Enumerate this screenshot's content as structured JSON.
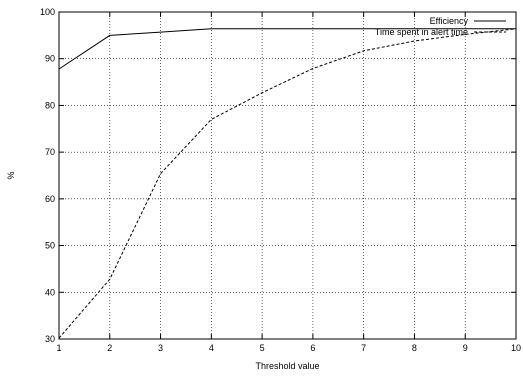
{
  "chart_data": {
    "type": "line",
    "xlabel": "Threshold value",
    "ylabel": "%",
    "xlim": [
      1,
      10
    ],
    "ylim": [
      30,
      100
    ],
    "x_ticks": [
      "1",
      "2",
      "3",
      "4",
      "5",
      "6",
      "7",
      "8",
      "9",
      "10"
    ],
    "y_ticks": [
      "30",
      "40",
      "50",
      "60",
      "70",
      "80",
      "90",
      "100"
    ],
    "grid": true,
    "legend_position": "top-right",
    "x": [
      1,
      2,
      3,
      4,
      5,
      6,
      7,
      8,
      9,
      10
    ],
    "series": [
      {
        "name": "Efficiency",
        "style": "solid",
        "values": [
          87.8,
          95.0,
          95.7,
          96.4,
          96.4,
          96.4,
          96.4,
          96.4,
          96.4,
          96.4
        ]
      },
      {
        "name": "Time spent in alert time",
        "style": "dashed",
        "values": [
          30.2,
          42.8,
          65.4,
          77.0,
          82.7,
          87.9,
          91.7,
          93.8,
          95.2,
          96.4
        ]
      }
    ]
  }
}
